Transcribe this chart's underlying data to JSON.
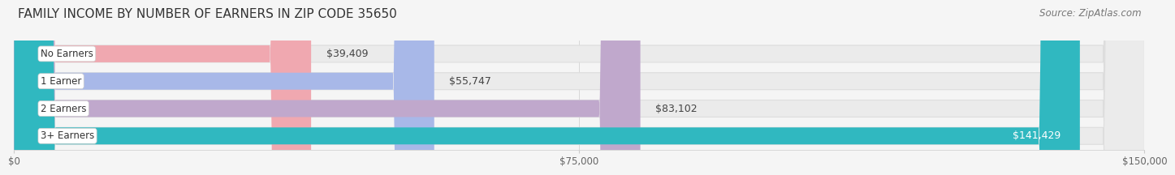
{
  "title": "FAMILY INCOME BY NUMBER OF EARNERS IN ZIP CODE 35650",
  "source": "Source: ZipAtlas.com",
  "categories": [
    "No Earners",
    "1 Earner",
    "2 Earners",
    "3+ Earners"
  ],
  "values": [
    39409,
    55747,
    83102,
    141429
  ],
  "bar_colors": [
    "#f0a8b0",
    "#a8b8e8",
    "#c0a8cc",
    "#30b8c0"
  ],
  "label_colors": [
    "#444444",
    "#444444",
    "#444444",
    "#ffffff"
  ],
  "x_max": 150000,
  "x_ticks": [
    0,
    75000,
    150000
  ],
  "x_tick_labels": [
    "$0",
    "$75,000",
    "$150,000"
  ],
  "background_color": "#f5f5f5",
  "bar_bg_color": "#ebebeb",
  "title_fontsize": 11,
  "source_fontsize": 8.5,
  "bar_label_fontsize": 9,
  "category_fontsize": 8.5
}
